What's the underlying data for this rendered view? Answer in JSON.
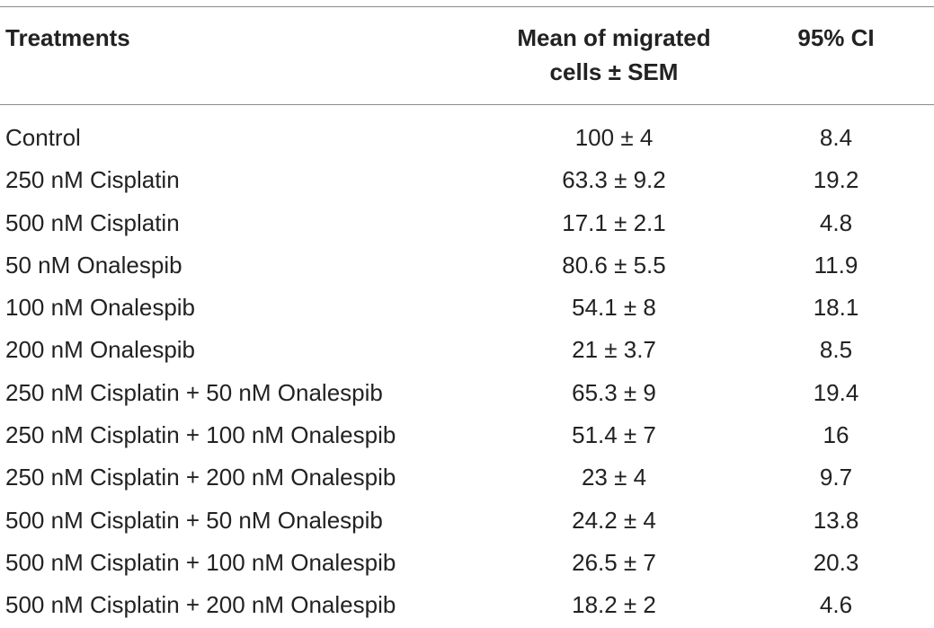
{
  "table": {
    "headers": {
      "treatments": "Treatments",
      "mean_line1": "Mean of migrated",
      "mean_line2": "cells ± SEM",
      "ci": "95% CI"
    },
    "rows": [
      {
        "treatment": "Control",
        "mean": "100 ± 4",
        "ci": "8.4"
      },
      {
        "treatment": "250 nM Cisplatin",
        "mean": "63.3 ± 9.2",
        "ci": "19.2"
      },
      {
        "treatment": "500 nM Cisplatin",
        "mean": "17.1 ± 2.1",
        "ci": "4.8"
      },
      {
        "treatment": "50 nM Onalespib",
        "mean": "80.6 ± 5.5",
        "ci": "11.9"
      },
      {
        "treatment": "100 nM Onalespib",
        "mean": "54.1 ± 8",
        "ci": "18.1"
      },
      {
        "treatment": "200 nM Onalespib",
        "mean": "21 ± 3.7",
        "ci": "8.5"
      },
      {
        "treatment": "250 nM Cisplatin + 50 nM Onalespib",
        "mean": "65.3 ± 9",
        "ci": "19.4"
      },
      {
        "treatment": "250 nM Cisplatin + 100 nM Onalespib",
        "mean": "51.4 ± 7",
        "ci": "16"
      },
      {
        "treatment": "250 nM Cisplatin + 200 nM Onalespib",
        "mean": "23 ± 4",
        "ci": "9.7"
      },
      {
        "treatment": "500 nM Cisplatin + 50 nM Onalespib",
        "mean": "24.2 ± 4",
        "ci": "13.8"
      },
      {
        "treatment": "500 nM Cisplatin + 100 nM Onalespib",
        "mean": "26.5 ± 7",
        "ci": "20.3"
      },
      {
        "treatment": "500 nM Cisplatin + 200 nM Onalespib",
        "mean": "18.2 ± 2",
        "ci": "4.6"
      }
    ]
  }
}
